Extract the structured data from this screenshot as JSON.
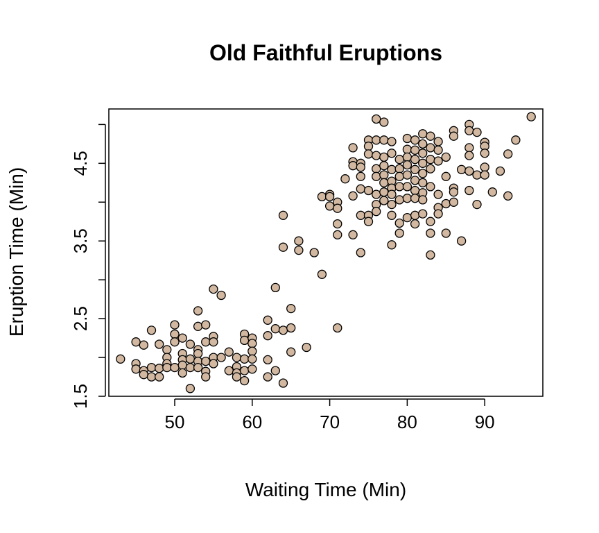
{
  "chart_data": {
    "type": "scatter",
    "title": "Old Faithful Eruptions",
    "xlabel": "Waiting Time (Min)",
    "ylabel": "Eruption Time (Min)",
    "xlim": [
      41.5,
      97.5
    ],
    "ylim": [
      1.5,
      5.2
    ],
    "x_ticks": [
      50,
      60,
      70,
      80,
      90
    ],
    "x_tick_labels": [
      "50",
      "60",
      "70",
      "80",
      "90"
    ],
    "y_ticks": [
      1.5,
      2,
      2.5,
      3,
      3.5,
      4,
      4.5,
      5
    ],
    "y_tick_labels": [
      "1.5",
      "",
      "2.5",
      "",
      "3.5",
      "",
      "4.5",
      ""
    ],
    "grid": false,
    "marker_fill": "#d2b8a0",
    "marker_edge": "#000000",
    "points": [
      [
        43,
        1.98
      ],
      [
        45,
        2.2
      ],
      [
        45,
        1.92
      ],
      [
        45,
        1.85
      ],
      [
        46,
        2.16
      ],
      [
        46,
        1.83
      ],
      [
        46,
        1.78
      ],
      [
        47,
        2.35
      ],
      [
        47,
        1.87
      ],
      [
        47,
        1.75
      ],
      [
        48,
        2.17
      ],
      [
        48,
        1.86
      ],
      [
        48,
        1.75
      ],
      [
        49,
        2.1
      ],
      [
        49,
        2.0
      ],
      [
        49,
        1.92
      ],
      [
        49,
        1.87
      ],
      [
        50,
        2.42
      ],
      [
        50,
        2.3
      ],
      [
        50,
        2.2
      ],
      [
        50,
        1.87
      ],
      [
        51,
        2.25
      ],
      [
        51,
        2.05
      ],
      [
        51,
        1.97
      ],
      [
        51,
        1.9
      ],
      [
        51,
        1.8
      ],
      [
        52,
        2.17
      ],
      [
        52,
        1.98
      ],
      [
        52,
        1.87
      ],
      [
        52,
        1.6
      ],
      [
        53,
        2.6
      ],
      [
        53,
        2.4
      ],
      [
        53,
        2.1
      ],
      [
        53,
        2.05
      ],
      [
        53,
        1.95
      ],
      [
        53,
        1.87
      ],
      [
        54,
        2.42
      ],
      [
        54,
        2.2
      ],
      [
        54,
        1.95
      ],
      [
        54,
        1.82
      ],
      [
        54,
        1.75
      ],
      [
        55,
        2.88
      ],
      [
        55,
        2.27
      ],
      [
        55,
        2.2
      ],
      [
        55,
        2.0
      ],
      [
        55,
        1.92
      ],
      [
        56,
        2.8
      ],
      [
        56,
        2.0
      ],
      [
        57,
        2.07
      ],
      [
        57,
        1.83
      ],
      [
        58,
        2.0
      ],
      [
        58,
        1.88
      ],
      [
        58,
        1.8
      ],
      [
        58,
        1.75
      ],
      [
        59,
        2.3
      ],
      [
        59,
        2.22
      ],
      [
        59,
        1.98
      ],
      [
        59,
        1.83
      ],
      [
        59,
        1.7
      ],
      [
        60,
        2.25
      ],
      [
        60,
        2.18
      ],
      [
        60,
        2.08
      ],
      [
        60,
        1.98
      ],
      [
        60,
        1.85
      ],
      [
        62,
        2.48
      ],
      [
        62,
        2.28
      ],
      [
        62,
        1.97
      ],
      [
        62,
        1.75
      ],
      [
        63,
        2.9
      ],
      [
        63,
        2.37
      ],
      [
        63,
        1.83
      ],
      [
        64,
        3.83
      ],
      [
        64,
        3.42
      ],
      [
        64,
        2.35
      ],
      [
        64,
        1.67
      ],
      [
        65,
        2.63
      ],
      [
        65,
        2.38
      ],
      [
        65,
        2.07
      ],
      [
        66,
        3.5
      ],
      [
        66,
        3.38
      ],
      [
        67,
        2.13
      ],
      [
        68,
        3.35
      ],
      [
        69,
        4.07
      ],
      [
        69,
        3.07
      ],
      [
        70,
        4.1
      ],
      [
        70,
        4.07
      ],
      [
        70,
        3.95
      ],
      [
        71,
        4.0
      ],
      [
        71,
        3.92
      ],
      [
        71,
        3.72
      ],
      [
        71,
        3.58
      ],
      [
        71,
        2.38
      ],
      [
        72,
        4.3
      ],
      [
        73,
        4.7
      ],
      [
        73,
        4.52
      ],
      [
        73,
        4.47
      ],
      [
        73,
        4.08
      ],
      [
        73,
        3.58
      ],
      [
        74,
        4.5
      ],
      [
        74,
        4.45
      ],
      [
        74,
        4.33
      ],
      [
        74,
        4.17
      ],
      [
        74,
        3.83
      ],
      [
        74,
        3.35
      ],
      [
        75,
        4.8
      ],
      [
        75,
        4.72
      ],
      [
        75,
        4.62
      ],
      [
        75,
        4.15
      ],
      [
        75,
        3.83
      ],
      [
        75,
        3.75
      ],
      [
        76,
        5.07
      ],
      [
        76,
        4.8
      ],
      [
        76,
        4.6
      ],
      [
        76,
        4.43
      ],
      [
        76,
        4.33
      ],
      [
        76,
        4.1
      ],
      [
        76,
        3.97
      ],
      [
        76,
        3.88
      ],
      [
        77,
        5.03
      ],
      [
        77,
        4.8
      ],
      [
        77,
        4.58
      ],
      [
        77,
        4.47
      ],
      [
        77,
        4.35
      ],
      [
        77,
        4.25
      ],
      [
        77,
        4.13
      ],
      [
        77,
        4.02
      ],
      [
        78,
        4.78
      ],
      [
        78,
        4.63
      ],
      [
        78,
        4.42
      ],
      [
        78,
        4.27
      ],
      [
        78,
        4.18
      ],
      [
        78,
        4.1
      ],
      [
        78,
        3.97
      ],
      [
        78,
        3.83
      ],
      [
        78,
        3.45
      ],
      [
        79,
        4.55
      ],
      [
        79,
        4.43
      ],
      [
        79,
        4.33
      ],
      [
        79,
        4.2
      ],
      [
        79,
        4.03
      ],
      [
        79,
        3.73
      ],
      [
        79,
        3.6
      ],
      [
        80,
        4.82
      ],
      [
        80,
        4.68
      ],
      [
        80,
        4.58
      ],
      [
        80,
        4.48
      ],
      [
        80,
        4.35
      ],
      [
        80,
        4.2
      ],
      [
        80,
        4.05
      ],
      [
        80,
        3.8
      ],
      [
        81,
        4.8
      ],
      [
        81,
        4.67
      ],
      [
        81,
        4.55
      ],
      [
        81,
        4.42
      ],
      [
        81,
        4.28
      ],
      [
        81,
        4.15
      ],
      [
        81,
        4.05
      ],
      [
        81,
        3.83
      ],
      [
        81,
        3.72
      ],
      [
        82,
        4.88
      ],
      [
        82,
        4.75
      ],
      [
        82,
        4.63
      ],
      [
        82,
        4.5
      ],
      [
        82,
        4.37
      ],
      [
        82,
        4.25
      ],
      [
        82,
        4.12
      ],
      [
        82,
        4.03
      ],
      [
        82,
        3.85
      ],
      [
        83,
        4.85
      ],
      [
        83,
        4.7
      ],
      [
        83,
        4.55
      ],
      [
        83,
        4.43
      ],
      [
        83,
        4.2
      ],
      [
        83,
        3.75
      ],
      [
        83,
        3.6
      ],
      [
        83,
        3.32
      ],
      [
        84,
        4.78
      ],
      [
        84,
        4.67
      ],
      [
        84,
        4.53
      ],
      [
        84,
        4.1
      ],
      [
        84,
        3.93
      ],
      [
        84,
        3.85
      ],
      [
        85,
        4.58
      ],
      [
        85,
        4.33
      ],
      [
        85,
        3.98
      ],
      [
        85,
        3.6
      ],
      [
        86,
        4.92
      ],
      [
        86,
        4.85
      ],
      [
        86,
        4.18
      ],
      [
        86,
        4.13
      ],
      [
        86,
        4.0
      ],
      [
        87,
        4.42
      ],
      [
        87,
        3.5
      ],
      [
        88,
        5.0
      ],
      [
        88,
        4.92
      ],
      [
        88,
        4.7
      ],
      [
        88,
        4.6
      ],
      [
        88,
        4.4
      ],
      [
        88,
        4.15
      ],
      [
        89,
        4.9
      ],
      [
        89,
        4.35
      ],
      [
        89,
        3.97
      ],
      [
        90,
        4.77
      ],
      [
        90,
        4.72
      ],
      [
        90,
        4.63
      ],
      [
        90,
        4.45
      ],
      [
        90,
        4.35
      ],
      [
        91,
        4.13
      ],
      [
        92,
        4.4
      ],
      [
        93,
        4.62
      ],
      [
        93,
        4.08
      ],
      [
        94,
        4.8
      ],
      [
        96,
        5.1
      ]
    ]
  }
}
